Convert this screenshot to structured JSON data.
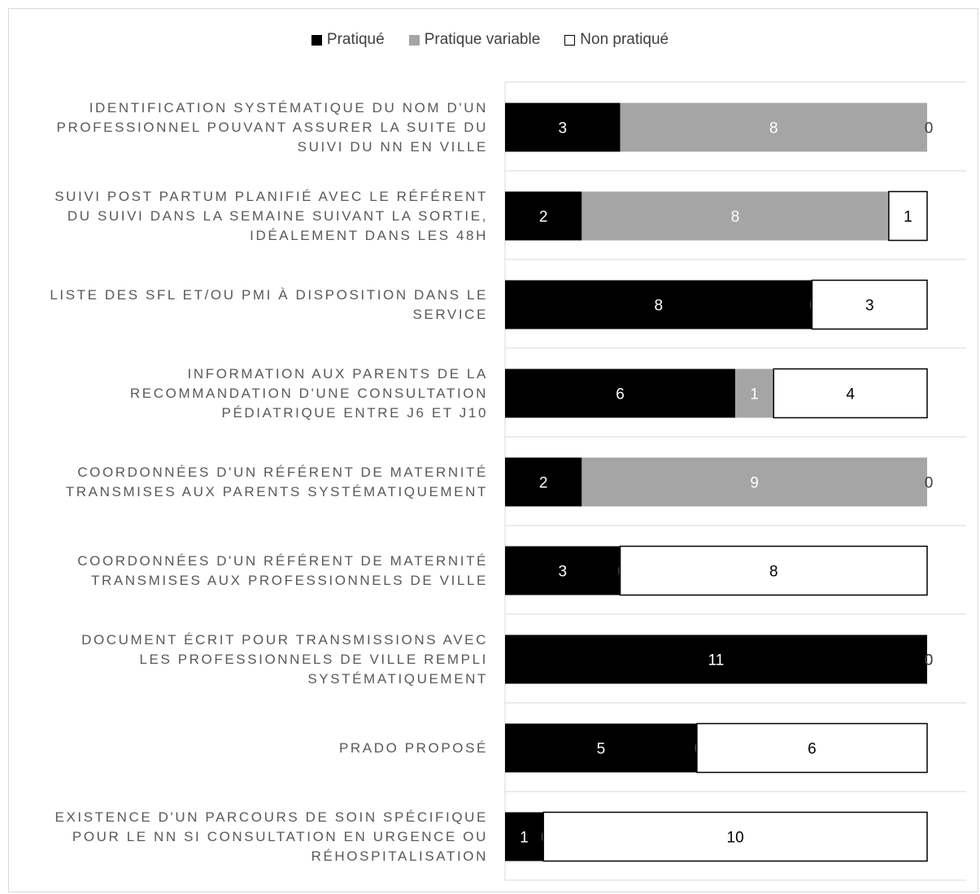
{
  "chart_data": {
    "type": "bar",
    "orientation": "horizontal",
    "stacked": true,
    "categories": [
      "IDENTIFICATION SYSTÉMATIQUE DU NOM D'UN PROFESSIONNEL POUVANT ASSURER LA SUITE DU SUIVI DU NN EN VILLE",
      "SUIVI POST PARTUM PLANIFIÉ AVEC LE RÉFÉRENT DU SUIVI DANS LA SEMAINE SUIVANT LA SORTIE, IDÉALEMENT DANS LES 48H",
      "LISTE DES SFL ET/OU PMI À DISPOSITION DANS LE SERVICE",
      "INFORMATION AUX PARENTS DE LA RECOMMANDATION D'UNE CONSULTATION PÉDIATRIQUE ENTRE J6 ET J10",
      "COORDONNÉES D'UN RÉFÉRENT DE MATERNITÉ TRANSMISES AUX PARENTS SYSTÉMATIQUEMENT",
      "COORDONNÉES D'UN RÉFÉRENT DE MATERNITÉ TRANSMISES AUX PROFESSIONNELS DE VILLE",
      "DOCUMENT ÉCRIT POUR TRANSMISSIONS AVEC LES PROFESSIONNELS DE VILLE REMPLI SYSTÉMATIQUEMENT",
      "PRADO PROPOSÉ",
      "EXISTENCE D'UN PARCOURS DE SOIN SPÉCIFIQUE POUR LE NN SI CONSULTATION EN URGENCE OU RÉHOSPITALISATION"
    ],
    "category_lines": [
      [
        "IDENTIFICATION SYSTÉMATIQUE DU NOM D'UN",
        "PROFESSIONNEL POUVANT ASSURER LA SUITE DU",
        "SUIVI DU NN EN VILLE"
      ],
      [
        "SUIVI POST PARTUM PLANIFIÉ AVEC LE RÉFÉRENT",
        "DU SUIVI DANS LA SEMAINE SUIVANT LA SORTIE,",
        "IDÉALEMENT DANS LES 48H"
      ],
      [
        "LISTE DES SFL ET/OU PMI À DISPOSITION DANS LE",
        "SERVICE"
      ],
      [
        "INFORMATION AUX PARENTS DE LA",
        "RECOMMANDATION D'UNE CONSULTATION",
        "PÉDIATRIQUE ENTRE J6 ET J10"
      ],
      [
        "COORDONNÉES D'UN RÉFÉRENT DE MATERNITÉ",
        "TRANSMISES AUX PARENTS SYSTÉMATIQUEMENT"
      ],
      [
        "COORDONNÉES D'UN RÉFÉRENT DE MATERNITÉ",
        "TRANSMISES AUX PROFESSIONNELS DE VILLE"
      ],
      [
        "DOCUMENT ÉCRIT POUR TRANSMISSIONS AVEC",
        "LES PROFESSIONNELS DE VILLE REMPLI",
        "SYSTÉMATIQUEMENT"
      ],
      [
        "PRADO PROPOSÉ"
      ],
      [
        "EXISTENCE D'UN PARCOURS DE SOIN SPÉCIFIQUE",
        "POUR LE NN SI CONSULTATION EN URGENCE OU",
        "RÉHOSPITALISATION"
      ]
    ],
    "series": [
      {
        "name": "Pratiqué",
        "color": "#000000",
        "label_color": "#ffffff",
        "values": [
          3,
          2,
          8,
          6,
          2,
          3,
          11,
          5,
          1
        ]
      },
      {
        "name": "Pratique variable",
        "color": "#a5a5a5",
        "label_color": "#ffffff",
        "values": [
          8,
          8,
          0,
          1,
          9,
          0,
          0,
          0,
          0
        ]
      },
      {
        "name": "Non pratiqué",
        "color": "#ffffff",
        "border": "#000000",
        "label_color": "#000000",
        "values": [
          0,
          1,
          3,
          4,
          0,
          8,
          0,
          6,
          10
        ]
      }
    ],
    "xlim": [
      0,
      11
    ],
    "legend_position": "top",
    "gridlines": "horizontal-separators"
  }
}
